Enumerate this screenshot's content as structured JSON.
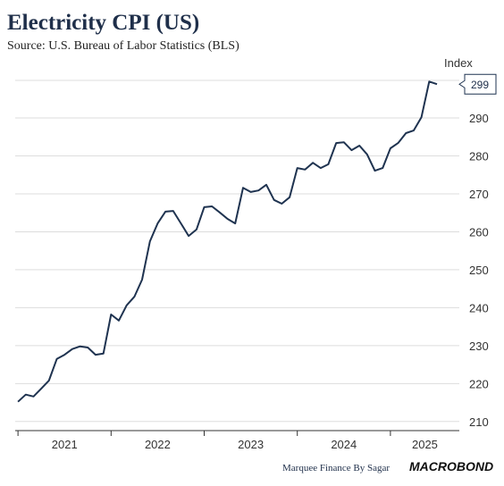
{
  "chart_data": {
    "type": "line",
    "title": "Electricity CPI (US)",
    "subtitle": "Source: U.S. Bureau of Labor Statistics (BLS)",
    "y_axis_label": "Index",
    "footer": "Marquee Finance By Sagar",
    "brand": "MACROBOND",
    "x": [
      2021,
      2021.083,
      2021.167,
      2021.25,
      2021.333,
      2021.417,
      2021.5,
      2021.583,
      2021.667,
      2021.75,
      2021.833,
      2021.917,
      2022,
      2022.083,
      2022.167,
      2022.25,
      2022.333,
      2022.417,
      2022.5,
      2022.583,
      2022.667,
      2022.75,
      2022.833,
      2022.917,
      2023,
      2023.083,
      2023.167,
      2023.25,
      2023.333,
      2023.417,
      2023.5,
      2023.583,
      2023.667,
      2023.75,
      2023.833,
      2023.917,
      2024,
      2024.083,
      2024.167,
      2024.25,
      2024.333,
      2024.417,
      2024.5,
      2024.583,
      2024.667,
      2024.75,
      2024.833,
      2024.917,
      2025,
      2025.083,
      2025.167,
      2025.25,
      2025.333,
      2025.417,
      2025.5
    ],
    "series": [
      {
        "name": "Electricity CPI",
        "color": "#1f3350",
        "values": [
          215.2,
          217.1,
          216.6,
          218.7,
          220.8,
          226.5,
          227.6,
          229.1,
          229.8,
          229.5,
          227.6,
          227.9,
          238.2,
          236.6,
          240.6,
          242.9,
          247.4,
          257.5,
          262.2,
          265.3,
          265.5,
          262.2,
          258.9,
          260.6,
          266.5,
          266.7,
          265.1,
          263.4,
          262.2,
          271.6,
          270.5,
          270.9,
          272.4,
          268.4,
          267.4,
          269.1,
          276.8,
          276.4,
          278.2,
          276.8,
          277.8,
          283.4,
          283.6,
          281.5,
          282.7,
          280.4,
          276.1,
          276.8,
          282.0,
          283.4,
          286.0,
          286.7,
          290.2,
          299.6,
          298.9
        ],
        "value_labels": [
          null,
          null,
          null,
          null,
          null,
          null,
          null,
          null,
          null,
          null,
          null,
          null,
          null,
          null,
          null,
          null,
          null,
          null,
          null,
          null,
          null,
          null,
          null,
          null,
          null,
          null,
          null,
          null,
          null,
          null,
          null,
          null,
          null,
          null,
          null,
          null,
          null,
          null,
          null,
          null,
          null,
          null,
          null,
          null,
          null,
          null,
          null,
          null,
          null,
          null,
          null,
          null,
          null,
          null,
          "299"
        ]
      }
    ],
    "xlim": [
      2020.97,
      2025.74
    ],
    "xticks": [
      {
        "value": 2021,
        "label": "2021"
      },
      {
        "value": 2022,
        "label": "2022"
      },
      {
        "value": 2023,
        "label": "2023"
      },
      {
        "value": 2024,
        "label": "2024"
      },
      {
        "value": 2025,
        "label": "2025"
      }
    ],
    "ylim": [
      207.6,
      299.9
    ],
    "yticks": [
      210,
      220,
      230,
      240,
      250,
      260,
      270,
      280,
      290
    ],
    "grid": true
  }
}
